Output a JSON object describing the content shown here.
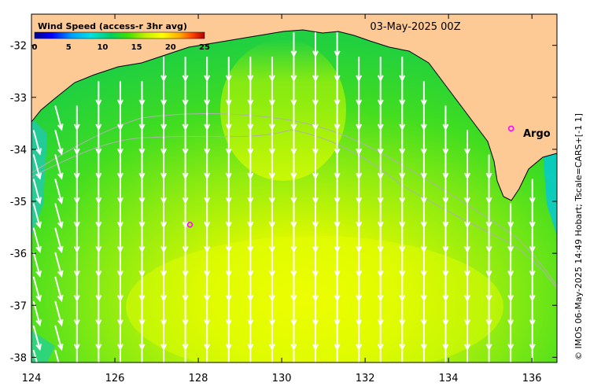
{
  "map": {
    "title": "Wind Speed (access-r 3hr avg)",
    "date": "03-May-2025 00Z",
    "credit": "© IMOS 06-May-2025 14:49 Hobart; Tscale=CARS+[-1 1]",
    "argo_label": "Argo",
    "lon_range": [
      124,
      136.6
    ],
    "lat_range": [
      -38.1,
      -31.4
    ],
    "x_ticks": [
      "124",
      "126",
      "128",
      "130",
      "132",
      "134",
      "136"
    ],
    "y_ticks": [
      "-32",
      "-33",
      "-34",
      "-35",
      "-36",
      "-37",
      "-38"
    ],
    "colorbar": {
      "ticks": [
        "0",
        "5",
        "10",
        "15",
        "20",
        "25"
      ],
      "range": [
        0,
        25
      ],
      "stops": [
        "#00008b",
        "#0000ff",
        "#00a0ff",
        "#00e0e0",
        "#00d060",
        "#40e000",
        "#c0f000",
        "#ffff00",
        "#ffb000",
        "#ff4000",
        "#b00000"
      ]
    },
    "colors": {
      "land": "#fdc995",
      "coastline": "#000000",
      "arrow": "#ffffff",
      "argo_marker": "#ff00ff",
      "contour": "#b0b0b0"
    },
    "wind_direction": "southward (northerly wind)",
    "argo_floats": [
      {
        "lon": 135.5,
        "lat": -33.6
      },
      {
        "lon": 127.8,
        "lat": -35.45
      }
    ]
  }
}
